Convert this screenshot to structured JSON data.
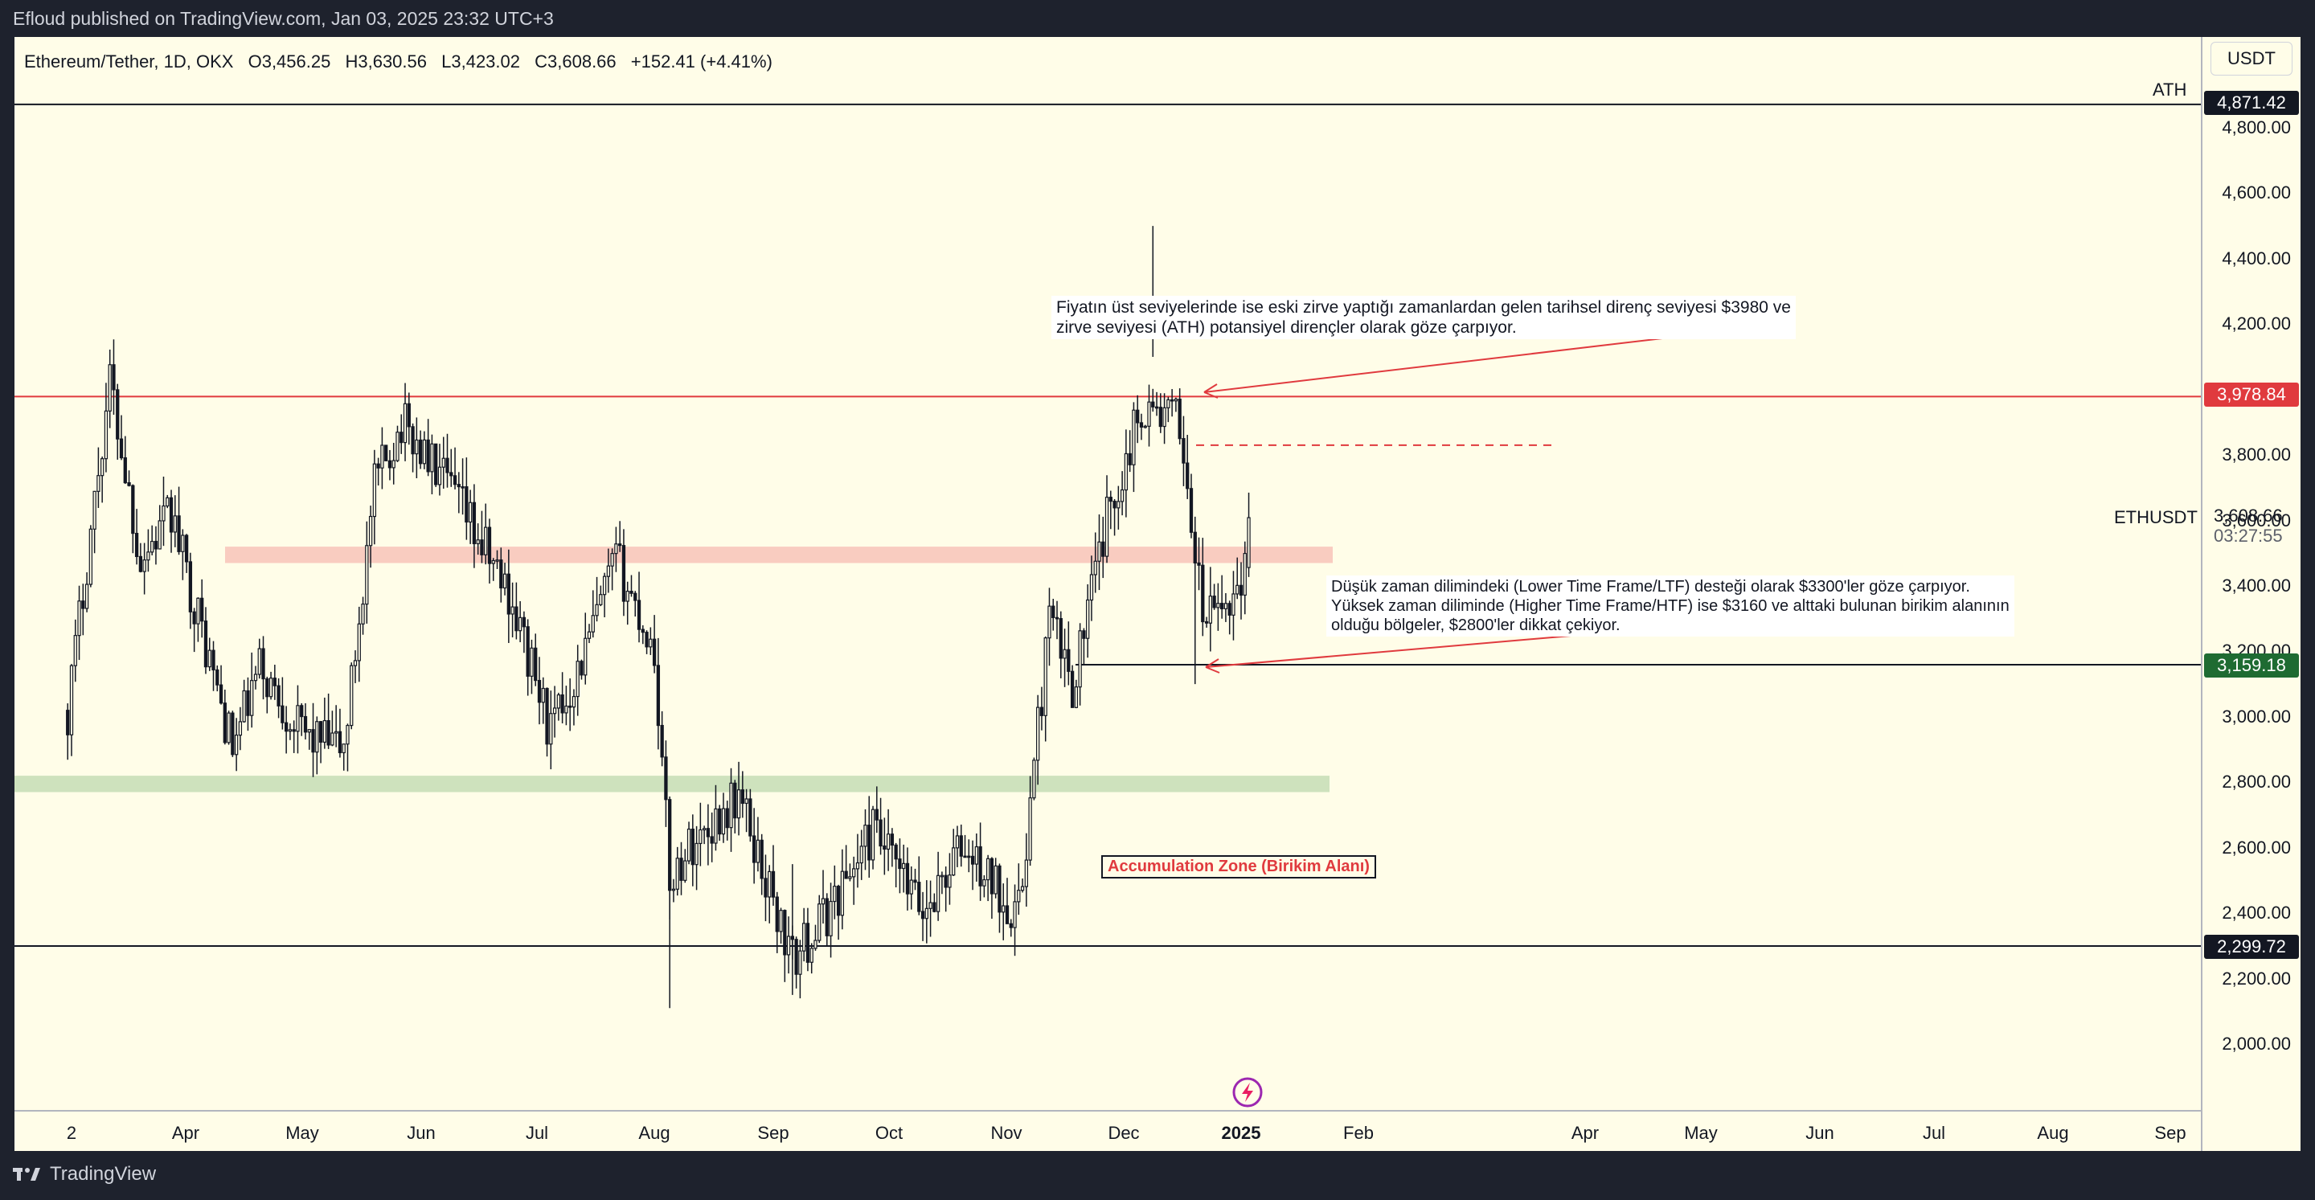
{
  "header": {
    "published_text": "Efloud published on TradingView.com, Jan 03, 2025 23:32 UTC+3"
  },
  "footer": {
    "logo_text": "TradingView"
  },
  "legend": {
    "symbol": "Ethereum/Tether, 1D, OKX",
    "open": "O3,456.25",
    "high": "H3,630.56",
    "low": "L3,423.02",
    "close": "C3,608.66",
    "change": "+152.41 (+4.41%)"
  },
  "price_axis": {
    "currency": "USDT",
    "ticks": [
      "4,800.00",
      "4,600.00",
      "4,400.00",
      "4,200.00",
      "4,000.00",
      "3,800.00",
      "3,600.00",
      "3,400.00",
      "3,200.00",
      "3,000.00",
      "2,800.00",
      "2,600.00",
      "2,400.00",
      "2,200.00",
      "2,000.00"
    ],
    "ath_tag": "4,871.42",
    "resistance_tag": "3,978.84",
    "support_tag": "3,159.18",
    "low_tag": "2,299.72",
    "last_price": "3,608.66",
    "countdown": "03:27:55",
    "symbol_label": "ETHUSDT"
  },
  "time_axis": {
    "labels": [
      "2",
      "Apr",
      "May",
      "Jun",
      "Jul",
      "Aug",
      "Sep",
      "Oct",
      "Nov",
      "Dec",
      "2025",
      "Feb",
      "Apr",
      "May",
      "Jun",
      "Jul",
      "Aug",
      "Sep"
    ]
  },
  "annotations": {
    "ath_label": "ATH",
    "resistance_note_line1": "Fiyatın üst seviyelerinde ise eski zirve yaptığı zamanlardan gelen tarihsel direnç seviyesi $3980 ve",
    "resistance_note_line2": "zirve seviyesi (ATH) potansiyel dirençler olarak göze çarpıyor.",
    "support_note_line1": "Düşük zaman dilimindeki (Lower Time Frame/LTF) desteği olarak $3300'ler göze çarpıyor.",
    "support_note_line2": "Yüksek zaman diliminde (Higher Time Frame/HTF) ise $3160 ve alttaki bulunan birikim alanının",
    "support_note_line3": "olduğu bölgeler, $2800'ler dikkat çekiyor.",
    "accumulation_label": "Accumulation Zone (Birikim Alanı)"
  },
  "colors": {
    "background": "#fffde8",
    "frame": "#1e222d",
    "candle": "#131722",
    "resistance": "#e03a3e",
    "support_zone": "#c9dfb8",
    "mid_zone": "#f8c7bb",
    "ath_tag_bg": "#131722",
    "support_tag_bg": "#1e6b32"
  },
  "chart_data": {
    "type": "candlestick",
    "title": "Ethereum/Tether, 1D, OKX",
    "y_unit": "USDT",
    "ylim": [
      1750,
      5100
    ],
    "x_range": [
      "2024-03-01",
      "2025-09-20"
    ],
    "horizontal_levels": [
      {
        "label": "ATH",
        "value": 4871.42
      },
      {
        "value": 3978.84
      },
      {
        "value": 3159.18
      },
      {
        "value": 2299.72
      }
    ],
    "zones": [
      {
        "from": 3470,
        "to": 3520
      },
      {
        "from": 2770,
        "to": 2820
      }
    ],
    "last": {
      "open": 3456.25,
      "high": 3630.56,
      "low": 3423.02,
      "close": 3608.66,
      "change": 152.41,
      "change_pct": 4.41
    },
    "anchors": [
      {
        "date": "2024-03-01",
        "price": 3020
      },
      {
        "date": "2024-03-12",
        "price": 4030
      },
      {
        "date": "2024-03-20",
        "price": 3480
      },
      {
        "date": "2024-03-28",
        "price": 3620
      },
      {
        "date": "2024-04-13",
        "price": 2900
      },
      {
        "date": "2024-04-20",
        "price": 3150
      },
      {
        "date": "2024-05-01",
        "price": 2950
      },
      {
        "date": "2024-05-12",
        "price": 2900
      },
      {
        "date": "2024-05-20",
        "price": 3700
      },
      {
        "date": "2024-05-27",
        "price": 3900
      },
      {
        "date": "2024-06-10",
        "price": 3670
      },
      {
        "date": "2024-06-24",
        "price": 3380
      },
      {
        "date": "2024-07-05",
        "price": 2950
      },
      {
        "date": "2024-07-14",
        "price": 3200
      },
      {
        "date": "2024-07-22",
        "price": 3480
      },
      {
        "date": "2024-08-01",
        "price": 3200
      },
      {
        "date": "2024-08-05",
        "price": 2500
      },
      {
        "date": "2024-08-10",
        "price": 2600
      },
      {
        "date": "2024-08-23",
        "price": 2760
      },
      {
        "date": "2024-09-06",
        "price": 2250
      },
      {
        "date": "2024-09-15",
        "price": 2400
      },
      {
        "date": "2024-09-27",
        "price": 2650
      },
      {
        "date": "2024-10-10",
        "price": 2400
      },
      {
        "date": "2024-10-20",
        "price": 2600
      },
      {
        "date": "2024-11-04",
        "price": 2400
      },
      {
        "date": "2024-11-12",
        "price": 3300
      },
      {
        "date": "2024-11-18",
        "price": 3100
      },
      {
        "date": "2024-11-27",
        "price": 3600
      },
      {
        "date": "2024-12-06",
        "price": 3950
      },
      {
        "date": "2024-12-16",
        "price": 3900
      },
      {
        "date": "2024-12-19",
        "price": 3600
      },
      {
        "date": "2024-12-22",
        "price": 3300
      },
      {
        "date": "2024-12-29",
        "price": 3350
      },
      {
        "date": "2025-01-02",
        "price": 3456.25
      },
      {
        "date": "2025-01-03",
        "price": 3608.66
      }
    ]
  }
}
